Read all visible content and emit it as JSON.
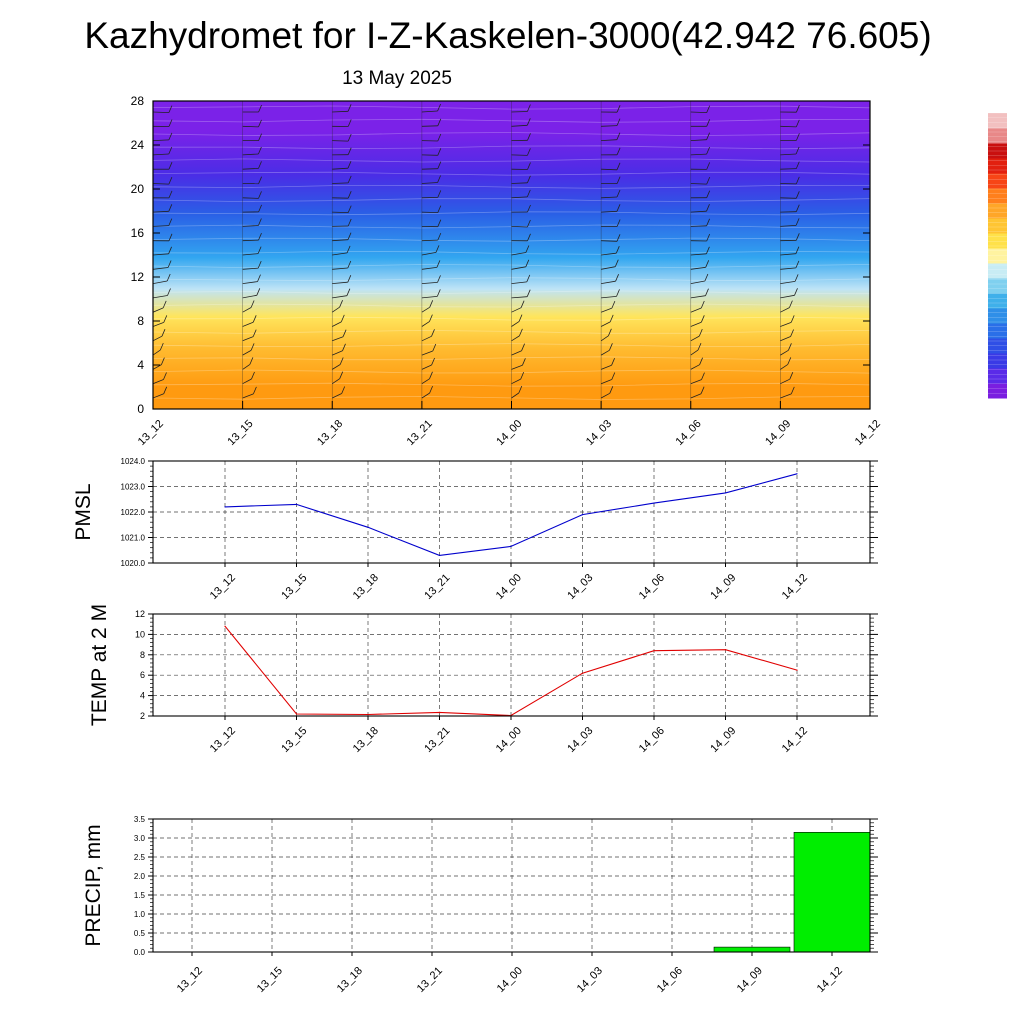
{
  "page": {
    "title": "Kazhydromet for I-Z-Kaskelen-3000(42.942 76.605)",
    "subtitle": "13 May 2025"
  },
  "chart_data": [
    {
      "id": "crosssection",
      "type": "heatmap",
      "title": "",
      "xlabel": "",
      "ylabel": "",
      "categories": [
        "13_12",
        "13_15",
        "13_18",
        "13_21",
        "14_00",
        "14_03",
        "14_06",
        "14_09",
        "14_12"
      ],
      "y_ticks": [
        0,
        4,
        8,
        12,
        16,
        20,
        24,
        28
      ],
      "ylim": [
        0,
        28
      ],
      "wind_barbs": true,
      "colorbar": {
        "placement": "right",
        "colors": [
          "#7a1ee0",
          "#5a2be8",
          "#3a3ae6",
          "#2f4fe6",
          "#2a6fe8",
          "#2f8fe8",
          "#3fb0ea",
          "#7fd0ef",
          "#c8ecf4",
          "#fff3a0",
          "#ffe14a",
          "#ffc533",
          "#ffa628",
          "#ff7f1c",
          "#f74516",
          "#e2200f",
          "#c9100f",
          "#e88888",
          "#f2c0c0"
        ]
      },
      "fill_bands": [
        {
          "from": 0,
          "to": 4,
          "color": "#ff9a10"
        },
        {
          "from": 4,
          "to": 7,
          "color": "#ffbb30"
        },
        {
          "from": 7,
          "to": 9.8,
          "color": "#ffe55c"
        },
        {
          "from": 9.8,
          "to": 12,
          "color": "#bfe4f6"
        },
        {
          "from": 12,
          "to": 15.5,
          "color": "#32a6f0"
        },
        {
          "from": 15.5,
          "to": 20,
          "color": "#2a5fe6"
        },
        {
          "from": 20,
          "to": 22.5,
          "color": "#4a2de6"
        },
        {
          "from": 22.5,
          "to": 28,
          "color": "#7b22e8"
        }
      ]
    },
    {
      "id": "pmsl",
      "type": "line",
      "title": "",
      "xlabel": "",
      "ylabel": "PMSL",
      "categories": [
        "13_12",
        "13_15",
        "13_18",
        "13_21",
        "14_00",
        "14_03",
        "14_06",
        "14_09",
        "14_12"
      ],
      "series": [
        {
          "values": [
            1022.2,
            1022.3,
            1021.4,
            1020.3,
            1020.65,
            1021.9,
            1022.35,
            1022.75,
            1023.5
          ],
          "color": "#0000cc"
        }
      ],
      "ylim": [
        1020.0,
        1024.0
      ],
      "y_ticks": [
        "1020.0",
        "1021.0",
        "1022.0",
        "1023.0",
        "1024.0"
      ],
      "grid": true
    },
    {
      "id": "temp",
      "type": "line",
      "title": "",
      "xlabel": "",
      "ylabel": "TEMP at 2 M",
      "categories": [
        "13_12",
        "13_15",
        "13_18",
        "13_21",
        "14_00",
        "14_03",
        "14_06",
        "14_09",
        "14_12"
      ],
      "series": [
        {
          "values": [
            10.8,
            2.2,
            2.15,
            2.35,
            2.05,
            6.2,
            8.4,
            8.5,
            6.5
          ],
          "color": "#e00000"
        }
      ],
      "ylim": [
        2,
        12
      ],
      "y_ticks": [
        "2",
        "4",
        "6",
        "8",
        "10",
        "12"
      ],
      "grid": true
    },
    {
      "id": "precip",
      "type": "bar",
      "title": "",
      "xlabel": "",
      "ylabel": "PRECIP, mm",
      "categories": [
        "13_12",
        "13_15",
        "13_18",
        "13_21",
        "14_00",
        "14_03",
        "14_06",
        "14_09",
        "14_12"
      ],
      "values": [
        0,
        0,
        0,
        0,
        0,
        0,
        0,
        0.13,
        3.15
      ],
      "bar_color": "#00ee00",
      "ylim": [
        0,
        3.5
      ],
      "y_ticks": [
        "0.0",
        "0.5",
        "1.0",
        "1.5",
        "2.0",
        "2.5",
        "3.0",
        "3.5"
      ],
      "grid": true
    }
  ]
}
